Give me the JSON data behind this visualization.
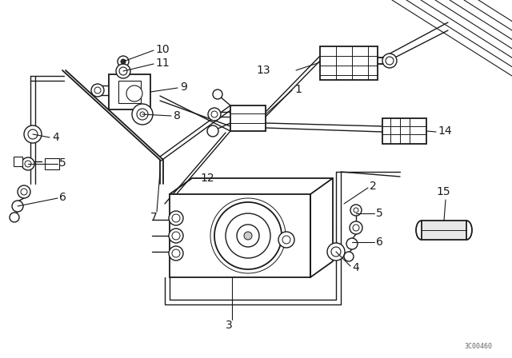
{
  "bg_color": "#ffffff",
  "lc": "#1a1a1a",
  "fig_width": 6.4,
  "fig_height": 4.48,
  "dpi": 100,
  "watermark": "3C00460",
  "xlim": [
    0,
    640
  ],
  "ylim": [
    0,
    448
  ]
}
